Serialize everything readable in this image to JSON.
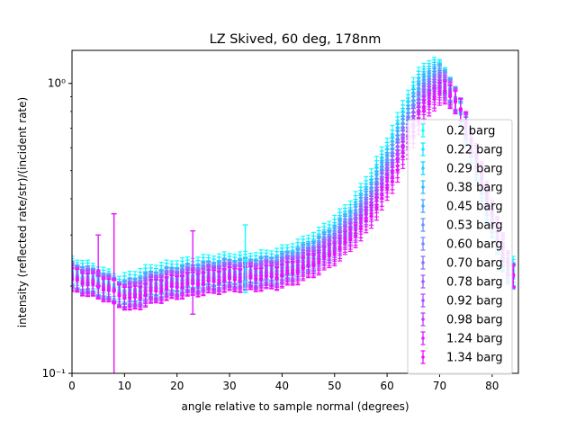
{
  "chart_data": {
    "type": "scatter",
    "title": "LZ Skived, 60 deg, 178nm",
    "xlabel": "angle relative to sample normal (degrees)",
    "ylabel": "intensity (reflected rate/str)/(incident rate)",
    "xlim": [
      0,
      85
    ],
    "ylim": [
      0.1,
      1.3
    ],
    "yscale": "log",
    "grid": false,
    "legend_position": "lower right",
    "xticks": [
      {
        "value": 0,
        "label": "0"
      },
      {
        "value": 10,
        "label": "10"
      },
      {
        "value": 20,
        "label": "20"
      },
      {
        "value": 30,
        "label": "30"
      },
      {
        "value": 40,
        "label": "40"
      },
      {
        "value": 50,
        "label": "50"
      },
      {
        "value": 60,
        "label": "60"
      },
      {
        "value": 70,
        "label": "70"
      },
      {
        "value": 80,
        "label": "80"
      }
    ],
    "yticks": [
      {
        "value": 0.1,
        "label": "10⁻¹"
      },
      {
        "value": 1,
        "label": "10⁰"
      }
    ],
    "x": [
      0,
      1,
      2,
      3,
      4,
      5,
      6,
      7,
      8,
      9,
      10,
      11,
      12,
      13,
      14,
      15,
      16,
      17,
      18,
      19,
      20,
      21,
      22,
      23,
      24,
      25,
      26,
      27,
      28,
      29,
      30,
      31,
      32,
      33,
      34,
      35,
      36,
      37,
      38,
      39,
      40,
      41,
      42,
      43,
      44,
      45,
      46,
      47,
      48,
      49,
      50,
      51,
      52,
      53,
      54,
      55,
      56,
      57,
      58,
      59,
      60,
      61,
      62,
      63,
      64,
      65,
      66,
      67,
      68,
      69,
      70,
      71,
      72,
      73,
      74,
      75,
      76,
      77,
      78,
      79,
      80,
      81,
      82,
      83,
      84
    ],
    "series": [
      {
        "name": "0.2 barg",
        "color": "#11ffff",
        "scale": 1.0,
        "offset": 0.0,
        "lag": -1.0,
        "rel_err": 0.09
      },
      {
        "name": "0.22 barg",
        "color": "#16eaff",
        "scale": 0.985,
        "offset": -0.002,
        "lag": -0.8,
        "rel_err": 0.09
      },
      {
        "name": "0.29 barg",
        "color": "#1cd5ff",
        "scale": 0.97,
        "offset": -0.004,
        "lag": -0.7,
        "rel_err": 0.09
      },
      {
        "name": "0.38 barg",
        "color": "#2ec0ff",
        "scale": 0.955,
        "offset": -0.002,
        "lag": -0.5,
        "rel_err": 0.09
      },
      {
        "name": "0.45 barg",
        "color": "#4aa8ff",
        "scale": 0.94,
        "offset": 0.002,
        "lag": -0.3,
        "rel_err": 0.09
      },
      {
        "name": "0.53 barg",
        "color": "#6395ff",
        "scale": 0.925,
        "offset": 0.004,
        "lag": -0.2,
        "rel_err": 0.09
      },
      {
        "name": "0.60 barg",
        "color": "#7a85ff",
        "scale": 0.905,
        "offset": 0.006,
        "lag": 0.0,
        "rel_err": 0.09
      },
      {
        "name": "0.70 barg",
        "color": "#8b6eff",
        "scale": 0.89,
        "offset": 0.008,
        "lag": 0.2,
        "rel_err": 0.09
      },
      {
        "name": "0.78 barg",
        "color": "#9f5cff",
        "scale": 0.875,
        "offset": 0.01,
        "lag": 0.3,
        "rel_err": 0.09
      },
      {
        "name": "0.92 barg",
        "color": "#b44bff",
        "scale": 0.86,
        "offset": 0.012,
        "lag": 0.5,
        "rel_err": 0.09
      },
      {
        "name": "0.98 barg",
        "color": "#c63aff",
        "scale": 0.845,
        "offset": 0.014,
        "lag": 0.6,
        "rel_err": 0.09
      },
      {
        "name": "1.24 barg",
        "color": "#dc20ff",
        "scale": 0.825,
        "offset": 0.016,
        "lag": 0.8,
        "rel_err": 0.09
      },
      {
        "name": "1.34 barg",
        "color": "#f00cff",
        "scale": 0.81,
        "offset": 0.018,
        "lag": 1.0,
        "rel_err": 0.09
      }
    ],
    "base_curve_x": [
      0,
      2,
      5,
      8,
      10,
      12,
      15,
      20,
      25,
      30,
      35,
      38,
      40,
      42,
      45,
      48,
      50,
      52,
      54,
      56,
      57,
      58,
      59,
      60,
      61,
      62,
      63,
      64,
      65,
      66,
      67,
      68,
      69,
      70,
      71,
      72,
      73,
      74,
      75,
      76,
      77,
      78,
      79,
      80,
      81,
      82,
      83,
      84
    ],
    "base_curve_y": [
      0.235,
      0.228,
      0.22,
      0.208,
      0.2,
      0.205,
      0.215,
      0.225,
      0.232,
      0.238,
      0.24,
      0.243,
      0.248,
      0.255,
      0.27,
      0.29,
      0.31,
      0.335,
      0.365,
      0.41,
      0.44,
      0.47,
      0.51,
      0.55,
      0.6,
      0.66,
      0.72,
      0.8,
      0.88,
      0.96,
      1.03,
      1.08,
      1.11,
      1.12,
      1.1,
      1.05,
      0.97,
      0.88,
      0.78,
      0.68,
      0.58,
      0.5,
      0.43,
      0.37,
      0.32,
      0.28,
      0.25,
      0.23
    ],
    "outliers": [
      {
        "series": "0.2 barg",
        "x": 33,
        "y": 0.245,
        "low": 0.19,
        "high": 0.325
      },
      {
        "series": "1.34 barg",
        "x": 8,
        "y": 0.175,
        "low": 0.1,
        "high": 0.355
      },
      {
        "series": "1.24 barg",
        "x": 23,
        "y": 0.195,
        "low": 0.16,
        "high": 0.31
      },
      {
        "series": "1.24 barg",
        "x": 5,
        "y": 0.225,
        "low": 0.2,
        "high": 0.3
      }
    ]
  }
}
